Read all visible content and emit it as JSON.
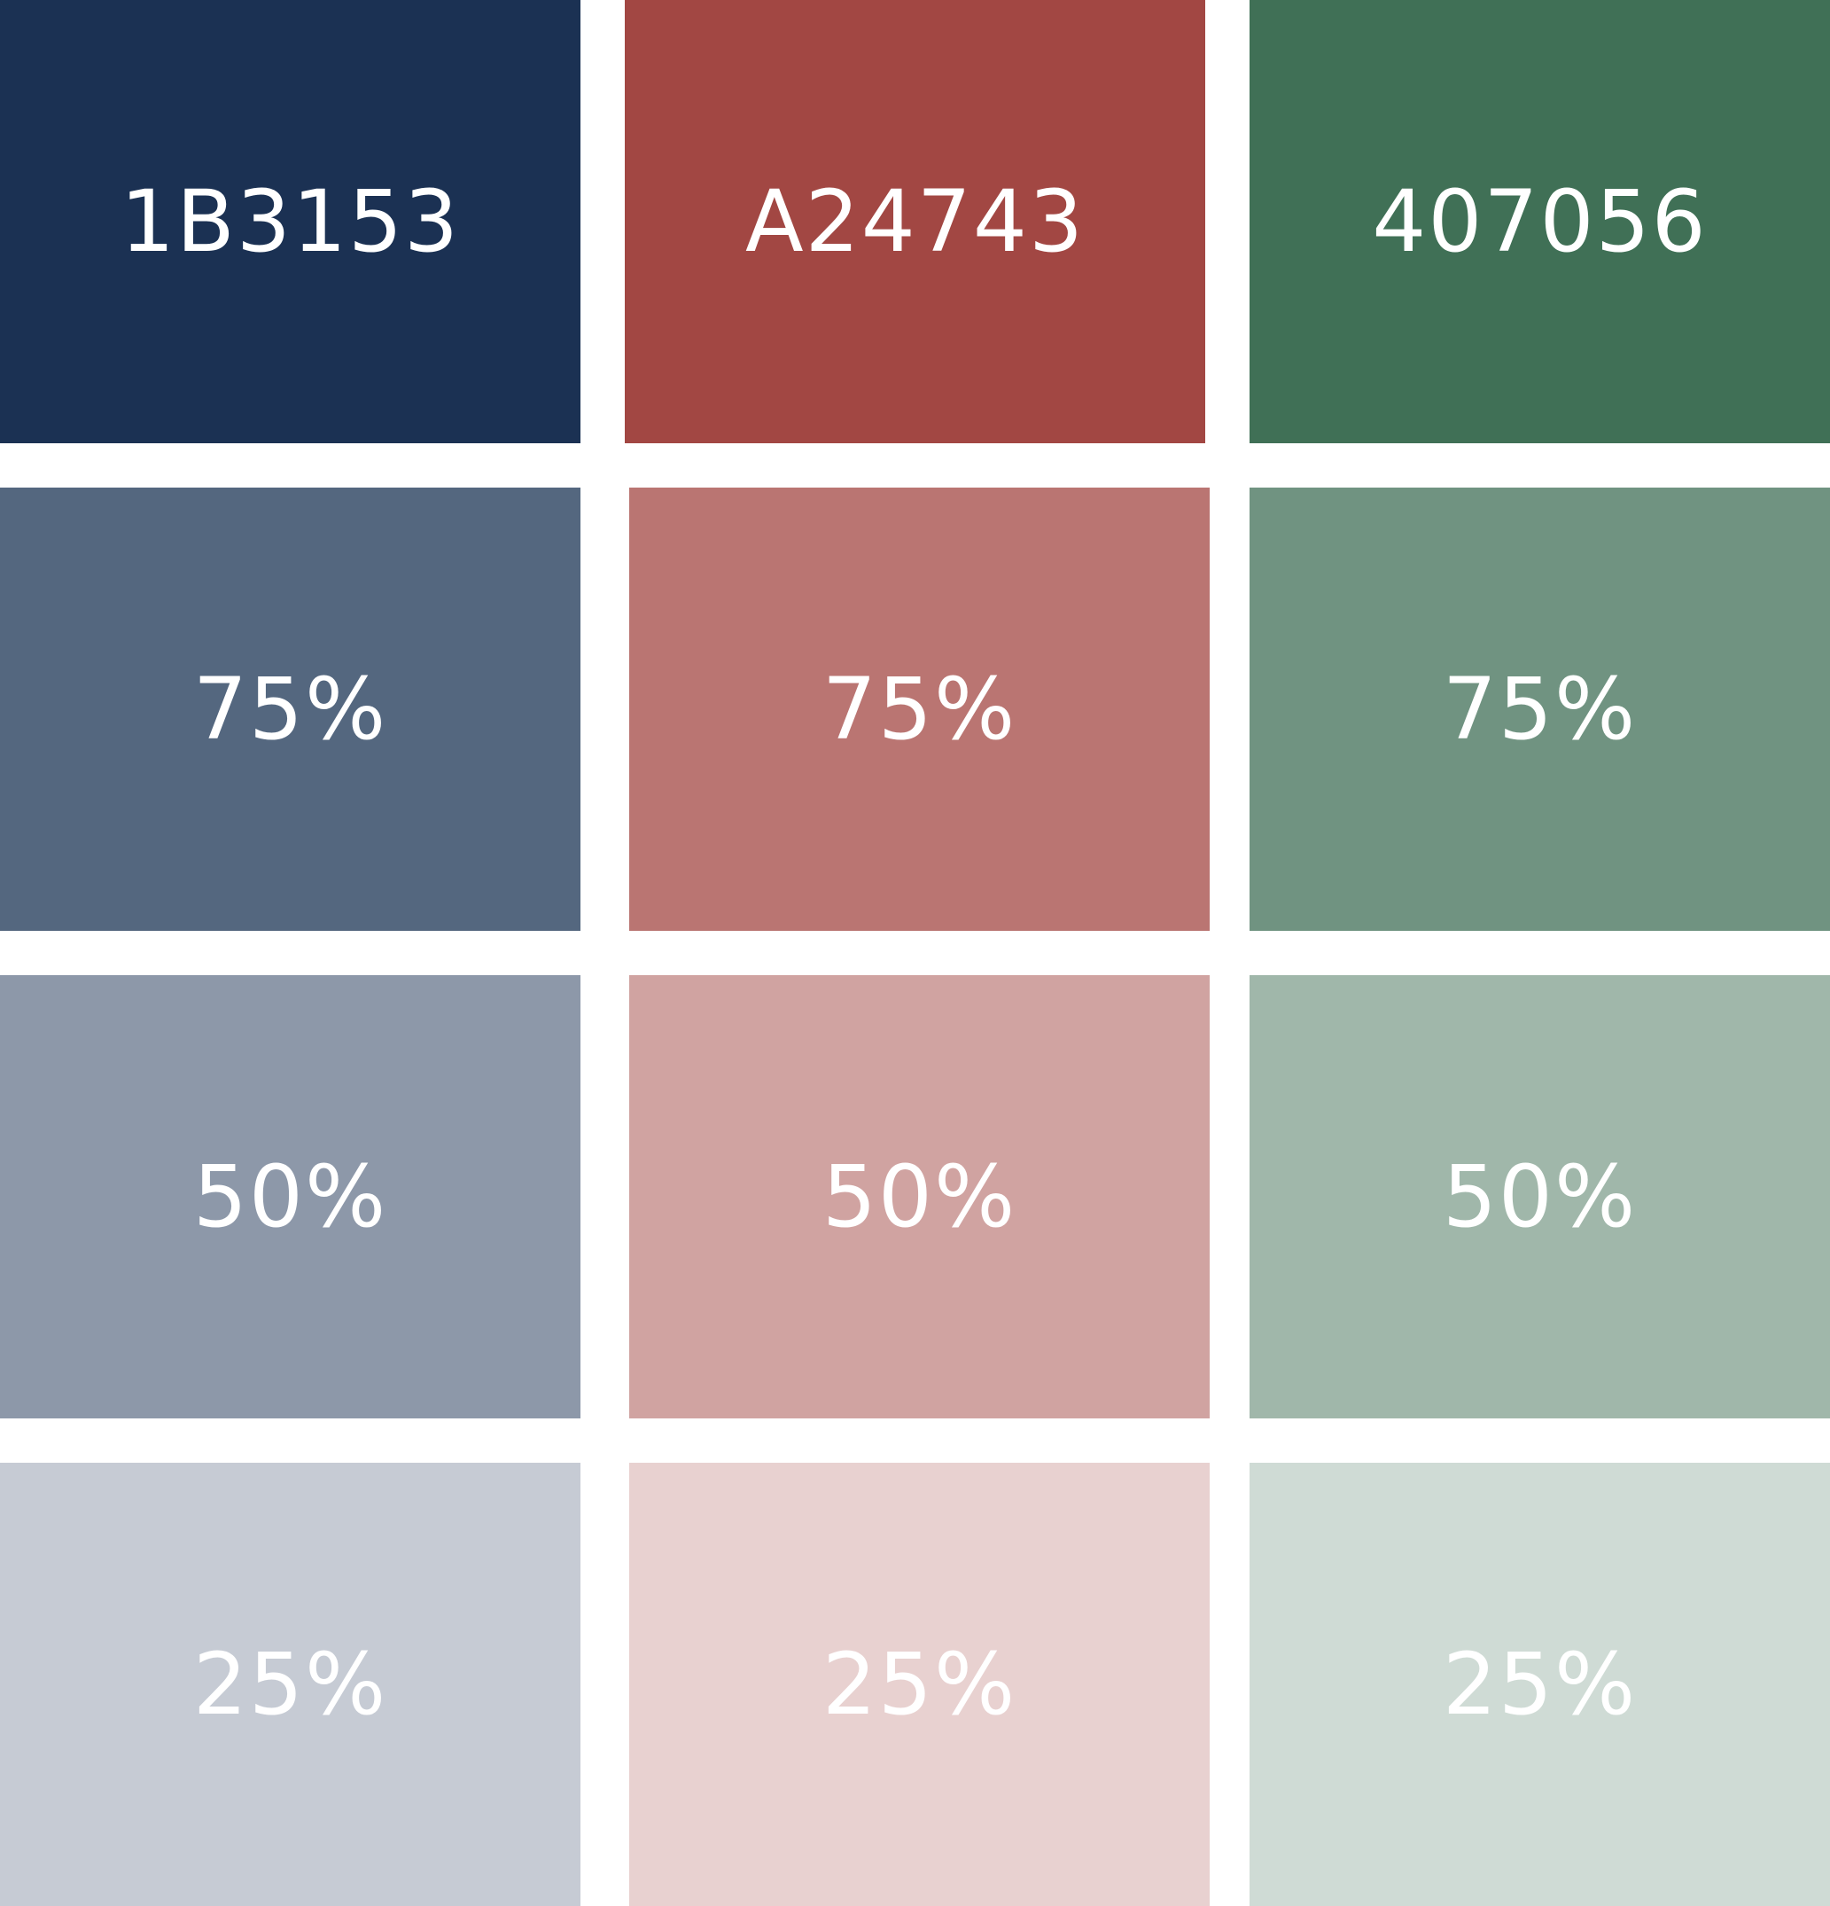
{
  "palette": [
    {
      "base": {
        "label": "1B3153",
        "color": "#1B3153"
      },
      "tints": [
        {
          "label": "75%",
          "color": "#54677F"
        },
        {
          "label": "50%",
          "color": "#8D98A9"
        },
        {
          "label": "25%",
          "color": "#C6CBD4"
        }
      ]
    },
    {
      "base": {
        "label": "A24743",
        "color": "#A24743"
      },
      "tints": [
        {
          "label": "75%",
          "color": "#BA7572"
        },
        {
          "label": "50%",
          "color": "#D0A3A1"
        },
        {
          "label": "25%",
          "color": "#E8D1D0"
        }
      ]
    },
    {
      "base": {
        "label": "407056",
        "color": "#407056"
      },
      "tints": [
        {
          "label": "75%",
          "color": "#709381"
        },
        {
          "label": "50%",
          "color": "#A0B7AA"
        },
        {
          "label": "25%",
          "color": "#CFDBD5"
        }
      ]
    }
  ]
}
